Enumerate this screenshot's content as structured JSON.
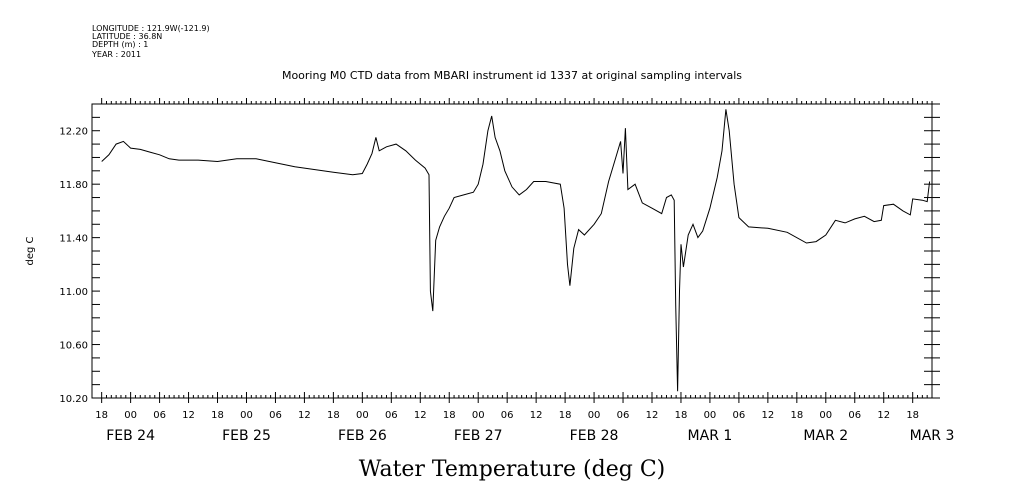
{
  "header": {
    "longitude": "LONGITUDE : 121.9W(-121.9)",
    "latitude": "LATITUDE : 36.8N",
    "depth": "DEPTH (m) : 1",
    "year": "YEAR : 2011"
  },
  "chart_data": {
    "type": "line",
    "title": "Mooring M0 CTD data from MBARI instrument id 1337 at original sampling intervals",
    "xlabel": "Water Temperature (deg C)",
    "ylabel": "deg C",
    "ylim": [
      10.2,
      12.4
    ],
    "yticks": [
      "10.20",
      "10.60",
      "11.00",
      "11.40",
      "11.80",
      "12.20"
    ],
    "xlim_hours": [
      -8,
      166
    ],
    "x_unit": "hours from 2011-02-24 00:00",
    "x_hour_labels": [
      "18",
      "00",
      "06",
      "12",
      "18",
      "00",
      "06",
      "12",
      "18",
      "00",
      "06",
      "12",
      "18",
      "00",
      "06",
      "12",
      "18",
      "00",
      "06",
      "12",
      "18",
      "00",
      "06",
      "12",
      "18",
      "00",
      "06",
      "12",
      "18"
    ],
    "x_date_labels": [
      {
        "text": "FEB 24",
        "hour": 0
      },
      {
        "text": "FEB 25",
        "hour": 24
      },
      {
        "text": "FEB 26",
        "hour": 48
      },
      {
        "text": "FEB 27",
        "hour": 72
      },
      {
        "text": "FEB 28",
        "hour": 96
      },
      {
        "text": "MAR 1",
        "hour": 120
      },
      {
        "text": "MAR 2",
        "hour": 144
      },
      {
        "text": "MAR 3",
        "hour": 166
      }
    ],
    "series": [
      {
        "color": "#000000",
        "points": [
          [
            -6.0,
            11.97
          ],
          [
            -4.5,
            12.02
          ],
          [
            -3.0,
            12.1
          ],
          [
            -1.5,
            12.12
          ],
          [
            0.0,
            12.07
          ],
          [
            2.0,
            12.06
          ],
          [
            4.0,
            12.04
          ],
          [
            6.0,
            12.02
          ],
          [
            8.0,
            11.99
          ],
          [
            10.0,
            11.98
          ],
          [
            14.0,
            11.98
          ],
          [
            18.0,
            11.97
          ],
          [
            22.0,
            11.99
          ],
          [
            26.0,
            11.99
          ],
          [
            30.0,
            11.96
          ],
          [
            34.0,
            11.93
          ],
          [
            38.0,
            11.91
          ],
          [
            42.0,
            11.89
          ],
          [
            46.0,
            11.87
          ],
          [
            48.0,
            11.88
          ],
          [
            49.0,
            11.95
          ],
          [
            50.0,
            12.03
          ],
          [
            50.8,
            12.15
          ],
          [
            51.5,
            12.05
          ],
          [
            53.0,
            12.08
          ],
          [
            55.0,
            12.1
          ],
          [
            57.0,
            12.05
          ],
          [
            59.0,
            11.98
          ],
          [
            61.0,
            11.92
          ],
          [
            61.8,
            11.87
          ],
          [
            62.1,
            11.0
          ],
          [
            62.6,
            10.85
          ],
          [
            63.2,
            11.38
          ],
          [
            64.0,
            11.48
          ],
          [
            65.0,
            11.56
          ],
          [
            66.0,
            11.62
          ],
          [
            67.0,
            11.7
          ],
          [
            69.0,
            11.72
          ],
          [
            71.0,
            11.74
          ],
          [
            72.0,
            11.8
          ],
          [
            73.0,
            11.95
          ],
          [
            74.0,
            12.2
          ],
          [
            74.8,
            12.31
          ],
          [
            75.5,
            12.15
          ],
          [
            76.5,
            12.05
          ],
          [
            77.5,
            11.9
          ],
          [
            79.0,
            11.78
          ],
          [
            80.5,
            11.72
          ],
          [
            82.0,
            11.76
          ],
          [
            83.5,
            11.82
          ],
          [
            86.0,
            11.82
          ],
          [
            89.0,
            11.8
          ],
          [
            89.8,
            11.62
          ],
          [
            90.5,
            11.2
          ],
          [
            91.0,
            11.04
          ],
          [
            91.8,
            11.32
          ],
          [
            92.8,
            11.46
          ],
          [
            94.0,
            11.42
          ],
          [
            96.0,
            11.5
          ],
          [
            97.5,
            11.58
          ],
          [
            99.0,
            11.82
          ],
          [
            100.5,
            12.0
          ],
          [
            101.5,
            12.12
          ],
          [
            102.0,
            11.88
          ],
          [
            102.5,
            12.22
          ],
          [
            103.0,
            11.76
          ],
          [
            104.5,
            11.8
          ],
          [
            106.0,
            11.66
          ],
          [
            108.0,
            11.62
          ],
          [
            110.0,
            11.58
          ],
          [
            111.0,
            11.7
          ],
          [
            112.0,
            11.72
          ],
          [
            112.6,
            11.68
          ],
          [
            112.9,
            10.9
          ],
          [
            113.3,
            10.25
          ],
          [
            113.7,
            11.0
          ],
          [
            114.0,
            11.35
          ],
          [
            114.5,
            11.18
          ],
          [
            115.5,
            11.42
          ],
          [
            116.5,
            11.5
          ],
          [
            117.5,
            11.4
          ],
          [
            118.5,
            11.45
          ],
          [
            120.0,
            11.62
          ],
          [
            121.5,
            11.85
          ],
          [
            122.5,
            12.05
          ],
          [
            123.3,
            12.36
          ],
          [
            124.0,
            12.2
          ],
          [
            125.0,
            11.8
          ],
          [
            126.0,
            11.55
          ],
          [
            128.0,
            11.48
          ],
          [
            132.0,
            11.47
          ],
          [
            136.0,
            11.44
          ],
          [
            140.0,
            11.36
          ],
          [
            142.0,
            11.37
          ],
          [
            144.0,
            11.42
          ],
          [
            146.0,
            11.53
          ],
          [
            148.0,
            11.51
          ],
          [
            150.0,
            11.54
          ],
          [
            152.0,
            11.56
          ],
          [
            154.0,
            11.52
          ],
          [
            155.5,
            11.53
          ],
          [
            156.0,
            11.64
          ],
          [
            158.0,
            11.65
          ],
          [
            160.0,
            11.6
          ],
          [
            161.5,
            11.57
          ],
          [
            162.0,
            11.69
          ],
          [
            164.0,
            11.68
          ],
          [
            165.0,
            11.67
          ],
          [
            165.5,
            11.82
          ]
        ]
      }
    ]
  }
}
